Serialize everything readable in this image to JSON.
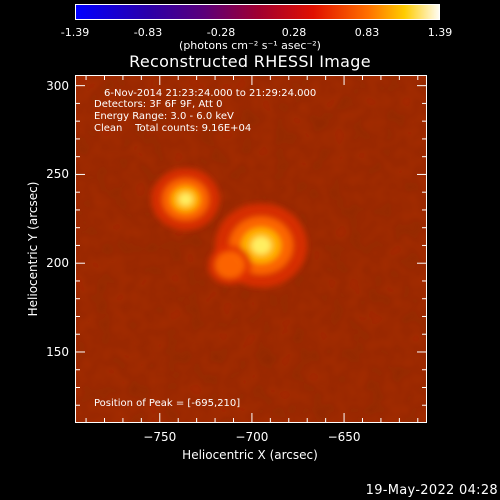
{
  "colorbar": {
    "min": -1.39,
    "max": 1.39,
    "tick_labels": [
      "-1.39",
      "-0.83",
      "-0.28",
      "0.28",
      "0.83",
      "1.39"
    ],
    "unit_label": "(photons cm⁻² s⁻¹ asec⁻²)",
    "colormap": "rhessi-red-temperature"
  },
  "chart_data": {
    "type": "heatmap",
    "title": "Reconstructed RHESSI Image",
    "xlabel": "Heliocentric X (arcsec)",
    "ylabel": "Heliocentric Y (arcsec)",
    "xlim": [
      -796,
      -605
    ],
    "ylim": [
      110,
      306
    ],
    "x_ticks": [
      -750,
      -700,
      -650
    ],
    "y_ticks": [
      150,
      200,
      250,
      300
    ],
    "annotations": [
      "6-Nov-2014 21:23:24.000 to 21:29:24.000",
      "Detectors: 3F 6F 9F, Att 0",
      "Energy Range: 3.0 - 6.0 keV",
      "Clean    Total counts: 9.16E+04"
    ],
    "peak_label": "Position of Peak = [-695,210]",
    "sources": [
      {
        "x": -695,
        "y": 210,
        "relative_intensity": 1.0
      },
      {
        "x": -736,
        "y": 236,
        "relative_intensity": 0.68
      },
      {
        "x": -712,
        "y": 199,
        "relative_intensity": 0.35
      }
    ],
    "grid": false
  },
  "footer": {
    "timestamp": "19-May-2022 04:28"
  }
}
